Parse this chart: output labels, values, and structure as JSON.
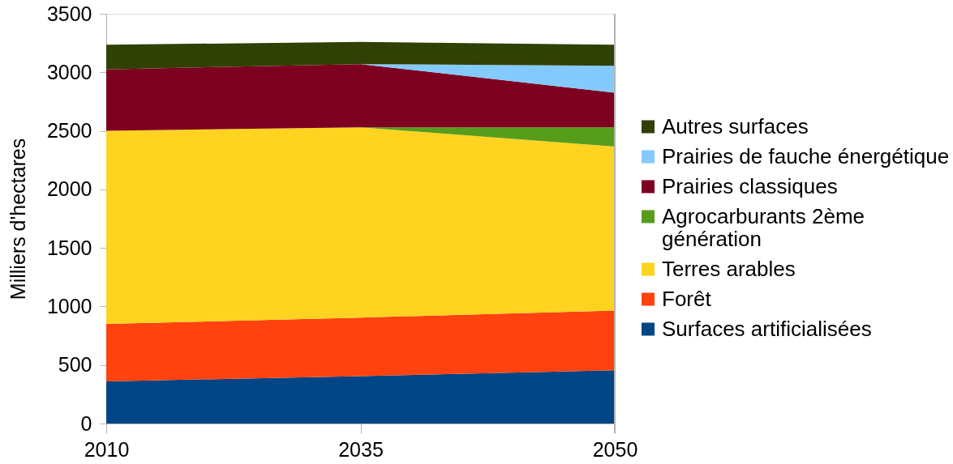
{
  "chart_data": {
    "type": "area",
    "stacked": true,
    "categories": [
      "2010",
      "2035",
      "2050"
    ],
    "ylabel": "Milliers d'hectares",
    "ylim": [
      0,
      3500
    ],
    "yticks": [
      0,
      500,
      1000,
      1500,
      2000,
      2500,
      3000,
      3500
    ],
    "grid": false,
    "legend": "right",
    "series": [
      {
        "name": "Surfaces artificialisées",
        "color": "#004586",
        "values": [
          360,
          405,
          455
        ]
      },
      {
        "name": "Forêt",
        "color": "#ff420e",
        "values": [
          490,
          500,
          510
        ]
      },
      {
        "name": "Terres arables",
        "color": "#ffd320",
        "values": [
          1650,
          1625,
          1400
        ]
      },
      {
        "name": "Agrocarburants 2ème génération",
        "color": "#579d1c",
        "values": [
          0,
          0,
          165
        ]
      },
      {
        "name": "Prairies classiques",
        "color": "#7e0021",
        "values": [
          525,
          540,
          295
        ]
      },
      {
        "name": "Prairies de fauche énergétique",
        "color": "#83caff",
        "values": [
          0,
          0,
          230
        ]
      },
      {
        "name": "Autres surfaces",
        "color": "#314004",
        "values": [
          210,
          190,
          180
        ]
      }
    ]
  }
}
